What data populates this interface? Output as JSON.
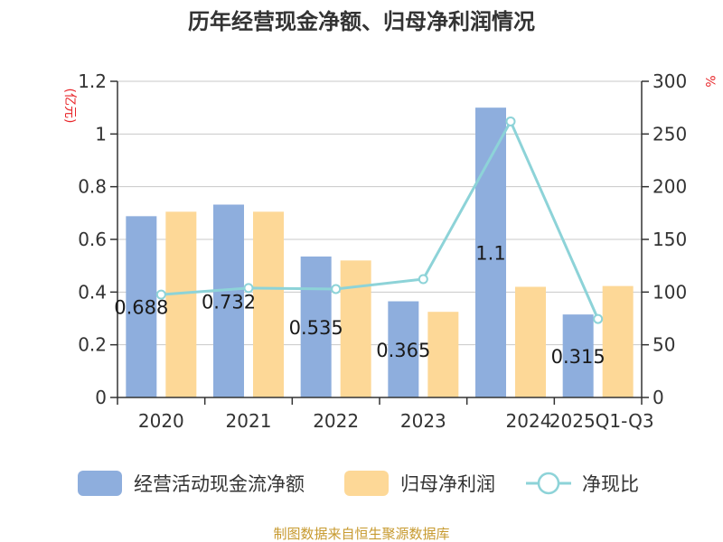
{
  "chart_data": {
    "type": "bar",
    "title": "历年经营现金净额、归母净利润情况",
    "categories": [
      "2020",
      "2021",
      "2022",
      "2023",
      "2024",
      "2025Q1-Q3"
    ],
    "series": [
      {
        "name": "经营活动现金流净额",
        "type": "bar",
        "axis": "left",
        "color": "#8eaedd",
        "values": [
          0.688,
          0.732,
          0.535,
          0.365,
          1.1,
          0.315
        ],
        "labels": [
          "0.688",
          "0.732",
          "0.535",
          "0.365",
          "1.1",
          "0.315"
        ]
      },
      {
        "name": "归母净利润",
        "type": "bar",
        "axis": "left",
        "color": "#fdd897",
        "values": [
          0.705,
          0.705,
          0.52,
          0.325,
          0.42,
          0.423
        ]
      },
      {
        "name": "净现比",
        "type": "line",
        "axis": "right",
        "color": "#8dd3d8",
        "values": [
          97.6,
          103.8,
          102.9,
          112.3,
          261.9,
          74.5
        ]
      }
    ],
    "y_left": {
      "unit": "(亿元)",
      "range": [
        0,
        1.2
      ],
      "ticks": [
        "0",
        "0.2",
        "0.4",
        "0.6",
        "0.8",
        "1",
        "1.2"
      ]
    },
    "y_right": {
      "unit": "%",
      "range": [
        0,
        300
      ],
      "ticks": [
        "0",
        "50",
        "100",
        "150",
        "200",
        "250",
        "300"
      ]
    },
    "grid": true,
    "legend_position": "bottom"
  },
  "source": "制图数据来自恒生聚源数据库"
}
